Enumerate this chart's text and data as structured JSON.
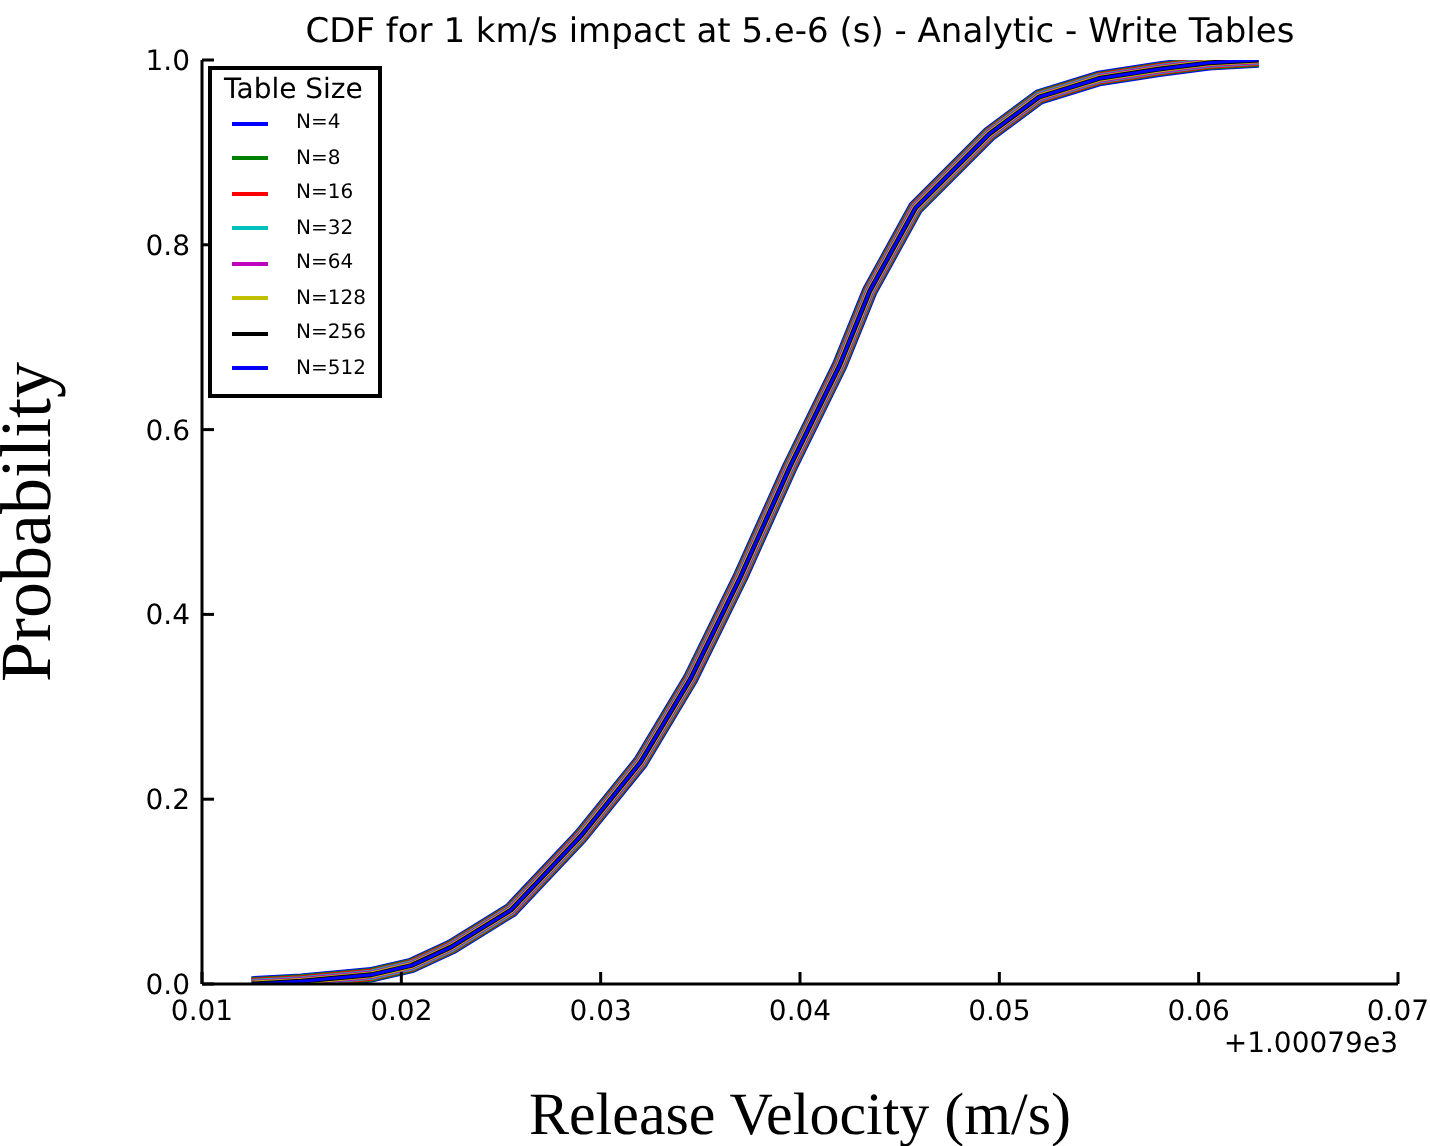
{
  "chart_data": {
    "type": "line",
    "title": "CDF for 1 km/s impact at 5.e-6 (s) - Analytic - Write Tables",
    "xlabel": "Release Velocity (m/s)",
    "ylabel": "Probability",
    "legend_title": "Table Size",
    "annotations": [
      "+1.00079e3"
    ],
    "x": [
      0.0125,
      0.015,
      0.0185,
      0.0205,
      0.0225,
      0.0255,
      0.029,
      0.032,
      0.0345,
      0.037,
      0.0395,
      0.042,
      0.0435,
      0.0458,
      0.0495,
      0.052,
      0.055,
      0.058,
      0.0605,
      0.063
    ],
    "series": [
      {
        "name": "N=4",
        "color": "#0000ff",
        "values": [
          0,
          0.003,
          0.01,
          0.02,
          0.04,
          0.08,
          0.16,
          0.24,
          0.33,
          0.44,
          0.56,
          0.67,
          0.75,
          0.84,
          0.92,
          0.96,
          0.98,
          0.99,
          0.997,
          1.0
        ]
      },
      {
        "name": "N=8",
        "color": "#008000",
        "values": [
          0,
          0.003,
          0.01,
          0.02,
          0.04,
          0.08,
          0.16,
          0.24,
          0.33,
          0.44,
          0.56,
          0.67,
          0.75,
          0.84,
          0.92,
          0.96,
          0.98,
          0.99,
          0.997,
          1.0
        ]
      },
      {
        "name": "N=16",
        "color": "#ff0000",
        "values": [
          0,
          0.003,
          0.01,
          0.02,
          0.04,
          0.08,
          0.16,
          0.24,
          0.33,
          0.44,
          0.56,
          0.67,
          0.75,
          0.84,
          0.92,
          0.96,
          0.98,
          0.99,
          0.997,
          1.0
        ]
      },
      {
        "name": "N=32",
        "color": "#00bfbf",
        "values": [
          0,
          0.003,
          0.01,
          0.02,
          0.04,
          0.08,
          0.16,
          0.24,
          0.33,
          0.44,
          0.56,
          0.67,
          0.75,
          0.84,
          0.92,
          0.96,
          0.98,
          0.99,
          0.997,
          1.0
        ]
      },
      {
        "name": "N=64",
        "color": "#bf00bf",
        "values": [
          0,
          0.003,
          0.01,
          0.02,
          0.04,
          0.08,
          0.16,
          0.24,
          0.33,
          0.44,
          0.56,
          0.67,
          0.75,
          0.84,
          0.92,
          0.96,
          0.98,
          0.99,
          0.997,
          1.0
        ]
      },
      {
        "name": "N=128",
        "color": "#bfbf00",
        "values": [
          0,
          0.003,
          0.01,
          0.02,
          0.04,
          0.08,
          0.16,
          0.24,
          0.33,
          0.44,
          0.56,
          0.67,
          0.75,
          0.84,
          0.92,
          0.96,
          0.98,
          0.99,
          0.997,
          1.0
        ]
      },
      {
        "name": "N=256",
        "color": "#000000",
        "values": [
          0,
          0.003,
          0.01,
          0.02,
          0.04,
          0.08,
          0.16,
          0.24,
          0.33,
          0.44,
          0.56,
          0.67,
          0.75,
          0.84,
          0.92,
          0.96,
          0.98,
          0.99,
          0.997,
          1.0
        ]
      },
      {
        "name": "N=512",
        "color": "#0000ff",
        "values": [
          0,
          0.003,
          0.01,
          0.02,
          0.04,
          0.08,
          0.16,
          0.24,
          0.33,
          0.44,
          0.56,
          0.67,
          0.75,
          0.84,
          0.92,
          0.96,
          0.98,
          0.99,
          0.997,
          1.0
        ]
      }
    ],
    "xlim": [
      0.01,
      0.07
    ],
    "xticks": [
      {
        "value": 0.01,
        "label": "0.01"
      },
      {
        "value": 0.02,
        "label": "0.02"
      },
      {
        "value": 0.03,
        "label": "0.03"
      },
      {
        "value": 0.04,
        "label": "0.04"
      },
      {
        "value": 0.05,
        "label": "0.05"
      },
      {
        "value": 0.06,
        "label": "0.06"
      },
      {
        "value": 0.07,
        "label": "0.07"
      }
    ],
    "ylim": [
      0,
      1
    ],
    "yticks": [
      {
        "value": 0,
        "label": "0.0"
      },
      {
        "value": 0.2,
        "label": "0.2"
      },
      {
        "value": 0.4,
        "label": "0.4"
      },
      {
        "value": 0.6,
        "label": "0.6"
      },
      {
        "value": 0.8,
        "label": "0.8"
      },
      {
        "value": 1,
        "label": "1.0"
      }
    ],
    "grid": false,
    "legend": "top left",
    "marker": "none",
    "line_style": "solid"
  }
}
